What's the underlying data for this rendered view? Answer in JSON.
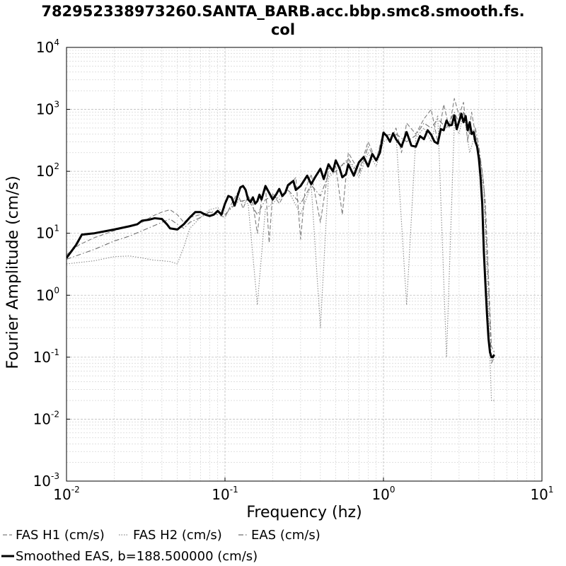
{
  "chart_data": {
    "type": "line",
    "title_line1": "782952338973260.SANTA_BARB.acc.bbp.smc8.smooth.fs.",
    "title_line2": "col",
    "xlabel": "Frequency (hz)",
    "ylabel": "Fourier Amplitude (cm/s)",
    "x_scale": "log",
    "y_scale": "log",
    "xlim": [
      0.01,
      10
    ],
    "ylim": [
      0.001,
      10000
    ],
    "grid": true,
    "x_ticks": [
      {
        "base": "10",
        "exp": "-2",
        "value": 0.01
      },
      {
        "base": "10",
        "exp": "-1",
        "value": 0.1
      },
      {
        "base": "10",
        "exp": "0",
        "value": 1
      },
      {
        "base": "10",
        "exp": "1",
        "value": 10
      }
    ],
    "y_ticks": [
      {
        "base": "10",
        "exp": "-3",
        "value": 0.001
      },
      {
        "base": "10",
        "exp": "-2",
        "value": 0.01
      },
      {
        "base": "10",
        "exp": "-1",
        "value": 0.1
      },
      {
        "base": "10",
        "exp": "0",
        "value": 1
      },
      {
        "base": "10",
        "exp": "1",
        "value": 10
      },
      {
        "base": "10",
        "exp": "2",
        "value": 100
      },
      {
        "base": "10",
        "exp": "3",
        "value": 1000
      },
      {
        "base": "10",
        "exp": "4",
        "value": 10000
      }
    ],
    "legend_position": "bottom",
    "series": [
      {
        "name": "FAS H1 (cm/s)",
        "style": "dashed",
        "color": "#7f7f7f",
        "points": [
          [
            0.01,
            4.5
          ],
          [
            0.012,
            6.5
          ],
          [
            0.015,
            8.5
          ],
          [
            0.02,
            11
          ],
          [
            0.025,
            13
          ],
          [
            0.03,
            15
          ],
          [
            0.035,
            19
          ],
          [
            0.04,
            22
          ],
          [
            0.045,
            24
          ],
          [
            0.05,
            20
          ],
          [
            0.055,
            15
          ],
          [
            0.06,
            18
          ],
          [
            0.07,
            20
          ],
          [
            0.08,
            22
          ],
          [
            0.09,
            20
          ],
          [
            0.1,
            18
          ],
          [
            0.11,
            30
          ],
          [
            0.12,
            45
          ],
          [
            0.13,
            25
          ],
          [
            0.14,
            40
          ],
          [
            0.15,
            30
          ],
          [
            0.16,
            10
          ],
          [
            0.17,
            35
          ],
          [
            0.18,
            60
          ],
          [
            0.19,
            7
          ],
          [
            0.2,
            45
          ],
          [
            0.22,
            30
          ],
          [
            0.25,
            55
          ],
          [
            0.28,
            80
          ],
          [
            0.3,
            8
          ],
          [
            0.32,
            50
          ],
          [
            0.35,
            90
          ],
          [
            0.4,
            15
          ],
          [
            0.45,
            110
          ],
          [
            0.5,
            120
          ],
          [
            0.55,
            20
          ],
          [
            0.6,
            200
          ],
          [
            0.7,
            100
          ],
          [
            0.8,
            300
          ],
          [
            0.9,
            150
          ],
          [
            1.0,
            450
          ],
          [
            1.1,
            300
          ],
          [
            1.2,
            500
          ],
          [
            1.3,
            200
          ],
          [
            1.4,
            600
          ],
          [
            1.6,
            400
          ],
          [
            1.8,
            700
          ],
          [
            2.0,
            1000
          ],
          [
            2.2,
            300
          ],
          [
            2.4,
            1200
          ],
          [
            2.6,
            500
          ],
          [
            2.8,
            1500
          ],
          [
            3.0,
            800
          ],
          [
            3.2,
            1300
          ],
          [
            3.4,
            300
          ],
          [
            3.6,
            900
          ],
          [
            3.8,
            400
          ],
          [
            4.0,
            200
          ],
          [
            4.2,
            100
          ],
          [
            4.4,
            30
          ],
          [
            4.6,
            2
          ],
          [
            4.8,
            0.15
          ],
          [
            5.0,
            0.12
          ]
        ]
      },
      {
        "name": "FAS H2 (cm/s)",
        "style": "dotted",
        "color": "#8a8a8a",
        "points": [
          [
            0.01,
            3.2
          ],
          [
            0.015,
            3.6
          ],
          [
            0.02,
            4.2
          ],
          [
            0.025,
            4.3
          ],
          [
            0.03,
            4.0
          ],
          [
            0.035,
            3.7
          ],
          [
            0.04,
            3.6
          ],
          [
            0.045,
            3.5
          ],
          [
            0.05,
            3.2
          ],
          [
            0.055,
            6
          ],
          [
            0.06,
            12
          ],
          [
            0.07,
            18
          ],
          [
            0.08,
            24
          ],
          [
            0.09,
            26
          ],
          [
            0.1,
            20
          ],
          [
            0.12,
            35
          ],
          [
            0.14,
            30
          ],
          [
            0.16,
            0.7
          ],
          [
            0.18,
            25
          ],
          [
            0.2,
            30
          ],
          [
            0.22,
            40
          ],
          [
            0.25,
            50
          ],
          [
            0.3,
            20
          ],
          [
            0.35,
            60
          ],
          [
            0.4,
            0.3
          ],
          [
            0.45,
            80
          ],
          [
            0.5,
            100
          ],
          [
            0.6,
            150
          ],
          [
            0.7,
            80
          ],
          [
            0.8,
            200
          ],
          [
            0.9,
            120
          ],
          [
            1.0,
            300
          ],
          [
            1.2,
            400
          ],
          [
            1.4,
            0.7
          ],
          [
            1.6,
            350
          ],
          [
            1.8,
            500
          ],
          [
            2.0,
            300
          ],
          [
            2.2,
            800
          ],
          [
            2.5,
            0.1
          ],
          [
            2.8,
            600
          ],
          [
            3.0,
            400
          ],
          [
            3.2,
            900
          ],
          [
            3.5,
            200
          ],
          [
            3.8,
            400
          ],
          [
            4.0,
            150
          ],
          [
            4.3,
            50
          ],
          [
            4.6,
            0.5
          ],
          [
            4.8,
            0.02
          ],
          [
            5.0,
            0.02
          ]
        ]
      },
      {
        "name": "EAS (cm/s)",
        "style": "dashdot",
        "color": "#6f6f6f",
        "points": [
          [
            0.01,
            3.8
          ],
          [
            0.015,
            5.5
          ],
          [
            0.02,
            7.5
          ],
          [
            0.025,
            9
          ],
          [
            0.03,
            11
          ],
          [
            0.035,
            13
          ],
          [
            0.04,
            15
          ],
          [
            0.045,
            17
          ],
          [
            0.05,
            14
          ],
          [
            0.055,
            12
          ],
          [
            0.06,
            15
          ],
          [
            0.07,
            18
          ],
          [
            0.08,
            22
          ],
          [
            0.09,
            22
          ],
          [
            0.1,
            20
          ],
          [
            0.12,
            32
          ],
          [
            0.14,
            35
          ],
          [
            0.16,
            20
          ],
          [
            0.18,
            35
          ],
          [
            0.2,
            40
          ],
          [
            0.22,
            35
          ],
          [
            0.25,
            50
          ],
          [
            0.3,
            30
          ],
          [
            0.35,
            60
          ],
          [
            0.4,
            40
          ],
          [
            0.45,
            90
          ],
          [
            0.5,
            100
          ],
          [
            0.6,
            160
          ],
          [
            0.7,
            90
          ],
          [
            0.8,
            250
          ],
          [
            0.9,
            150
          ],
          [
            1.0,
            380
          ],
          [
            1.2,
            400
          ],
          [
            1.4,
            300
          ],
          [
            1.6,
            380
          ],
          [
            1.8,
            600
          ],
          [
            2.0,
            500
          ],
          [
            2.2,
            700
          ],
          [
            2.5,
            500
          ],
          [
            2.8,
            900
          ],
          [
            3.0,
            600
          ],
          [
            3.2,
            900
          ],
          [
            3.5,
            400
          ],
          [
            3.8,
            500
          ],
          [
            4.0,
            250
          ],
          [
            4.3,
            60
          ],
          [
            4.6,
            1.5
          ],
          [
            4.8,
            0.08
          ],
          [
            5.0,
            0.1
          ]
        ]
      },
      {
        "name": "Smoothed EAS, b=188.500000 (cm/s)",
        "style": "solid-thick",
        "color": "#000000",
        "points": [
          [
            0.01,
            4.0
          ],
          [
            0.0115,
            6.5
          ],
          [
            0.0125,
            9.5
          ],
          [
            0.015,
            10
          ],
          [
            0.02,
            11.5
          ],
          [
            0.025,
            13
          ],
          [
            0.028,
            14
          ],
          [
            0.03,
            16
          ],
          [
            0.033,
            16.5
          ],
          [
            0.036,
            17.5
          ],
          [
            0.04,
            17
          ],
          [
            0.043,
            14
          ],
          [
            0.045,
            12
          ],
          [
            0.05,
            11.5
          ],
          [
            0.055,
            14
          ],
          [
            0.06,
            18
          ],
          [
            0.065,
            22
          ],
          [
            0.07,
            22
          ],
          [
            0.075,
            20
          ],
          [
            0.08,
            19
          ],
          [
            0.085,
            20
          ],
          [
            0.09,
            23
          ],
          [
            0.095,
            20
          ],
          [
            0.1,
            30
          ],
          [
            0.105,
            40
          ],
          [
            0.11,
            38
          ],
          [
            0.115,
            28
          ],
          [
            0.12,
            40
          ],
          [
            0.125,
            55
          ],
          [
            0.13,
            58
          ],
          [
            0.135,
            50
          ],
          [
            0.14,
            35
          ],
          [
            0.145,
            32
          ],
          [
            0.15,
            38
          ],
          [
            0.155,
            30
          ],
          [
            0.16,
            33
          ],
          [
            0.165,
            42
          ],
          [
            0.17,
            35
          ],
          [
            0.18,
            58
          ],
          [
            0.19,
            45
          ],
          [
            0.2,
            35
          ],
          [
            0.21,
            42
          ],
          [
            0.22,
            52
          ],
          [
            0.23,
            40
          ],
          [
            0.24,
            45
          ],
          [
            0.25,
            60
          ],
          [
            0.27,
            70
          ],
          [
            0.28,
            50
          ],
          [
            0.3,
            58
          ],
          [
            0.33,
            85
          ],
          [
            0.35,
            62
          ],
          [
            0.37,
            80
          ],
          [
            0.4,
            110
          ],
          [
            0.42,
            75
          ],
          [
            0.45,
            130
          ],
          [
            0.48,
            100
          ],
          [
            0.5,
            150
          ],
          [
            0.53,
            110
          ],
          [
            0.55,
            80
          ],
          [
            0.58,
            90
          ],
          [
            0.6,
            130
          ],
          [
            0.65,
            85
          ],
          [
            0.7,
            140
          ],
          [
            0.75,
            170
          ],
          [
            0.8,
            120
          ],
          [
            0.85,
            190
          ],
          [
            0.9,
            150
          ],
          [
            0.95,
            200
          ],
          [
            1.0,
            420
          ],
          [
            1.05,
            370
          ],
          [
            1.1,
            300
          ],
          [
            1.15,
            410
          ],
          [
            1.2,
            330
          ],
          [
            1.3,
            250
          ],
          [
            1.4,
            430
          ],
          [
            1.5,
            260
          ],
          [
            1.6,
            250
          ],
          [
            1.7,
            370
          ],
          [
            1.8,
            330
          ],
          [
            1.9,
            460
          ],
          [
            2.0,
            390
          ],
          [
            2.1,
            300
          ],
          [
            2.2,
            280
          ],
          [
            2.3,
            480
          ],
          [
            2.4,
            460
          ],
          [
            2.5,
            660
          ],
          [
            2.6,
            550
          ],
          [
            2.7,
            560
          ],
          [
            2.8,
            800
          ],
          [
            2.9,
            480
          ],
          [
            3.0,
            640
          ],
          [
            3.1,
            850
          ],
          [
            3.2,
            620
          ],
          [
            3.3,
            780
          ],
          [
            3.4,
            460
          ],
          [
            3.5,
            620
          ],
          [
            3.6,
            400
          ],
          [
            3.7,
            430
          ],
          [
            3.8,
            300
          ],
          [
            3.9,
            250
          ],
          [
            4.0,
            160
          ],
          [
            4.1,
            80
          ],
          [
            4.2,
            30
          ],
          [
            4.3,
            5
          ],
          [
            4.4,
            1.5
          ],
          [
            4.5,
            0.5
          ],
          [
            4.6,
            0.2
          ],
          [
            4.7,
            0.12
          ],
          [
            4.8,
            0.1
          ],
          [
            4.9,
            0.1
          ],
          [
            5.0,
            0.11
          ]
        ]
      }
    ]
  }
}
